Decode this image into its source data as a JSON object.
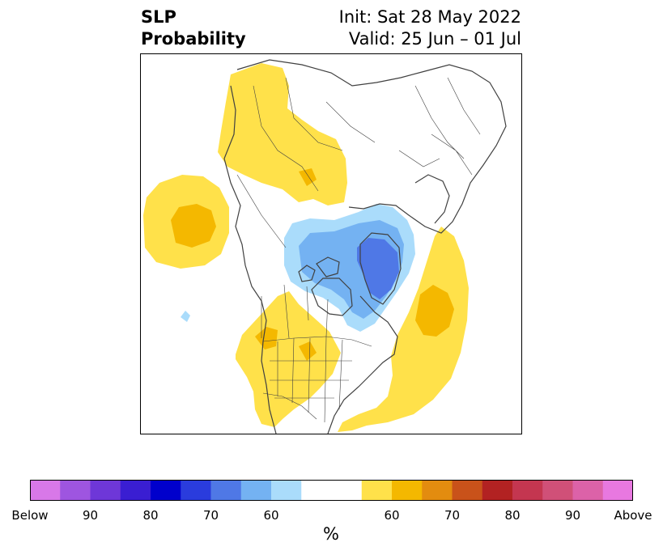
{
  "title": {
    "left_lines": [
      "SLP",
      "Probability"
    ],
    "right_lines": [
      "Init: Sat 28 May 2022",
      "Valid: 25 Jun – 01 Jul"
    ]
  },
  "colorbar": {
    "unit": "%",
    "colors": [
      "#d878e8",
      "#9e55e0",
      "#6e37d8",
      "#3a1ed2",
      "#0000cc",
      "#2a3cdd",
      "#4f78e6",
      "#74b2f2",
      "#aadcfb",
      "#ffffff",
      "#ffffff",
      "#ffe14a",
      "#f4b800",
      "#e38c0f",
      "#c9521a",
      "#b22222",
      "#c43650",
      "#d05078",
      "#dc62a8",
      "#e878e0"
    ],
    "tick_labels": [
      {
        "text": "Below",
        "slot": 0
      },
      {
        "text": "90",
        "slot": 2
      },
      {
        "text": "80",
        "slot": 4
      },
      {
        "text": "70",
        "slot": 6
      },
      {
        "text": "60",
        "slot": 8
      },
      {
        "text": "60",
        "slot": 12
      },
      {
        "text": "70",
        "slot": 14
      },
      {
        "text": "80",
        "slot": 16
      },
      {
        "text": "90",
        "slot": 18
      },
      {
        "text": "Above",
        "slot": 20
      }
    ]
  },
  "map": {
    "projection": "north polar stereographic",
    "colors": {
      "above_60": "#ffe14a",
      "above_65": "#f4b800",
      "below_60": "#aadcfb",
      "below_65": "#74b2f2",
      "below_70": "#4f78e6",
      "coast": "#404040"
    }
  }
}
